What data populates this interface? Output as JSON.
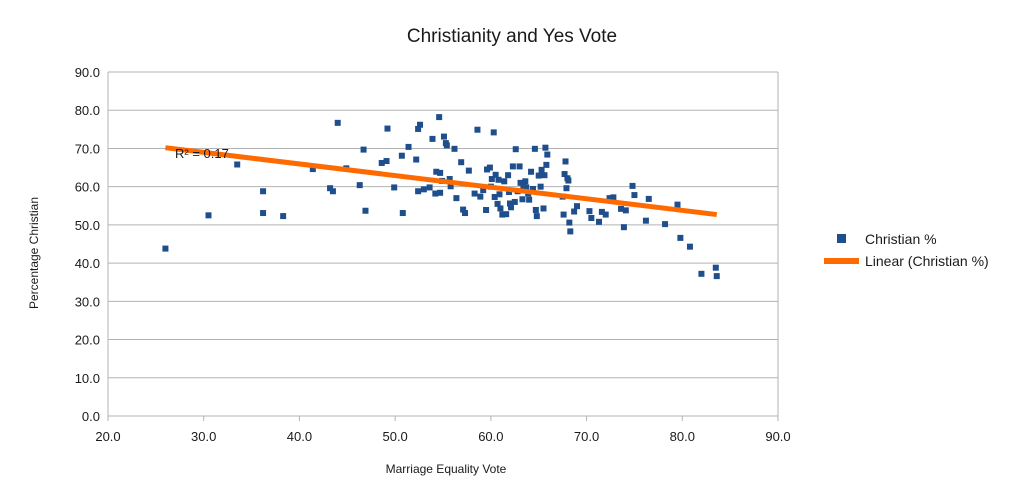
{
  "chart_data": {
    "type": "scatter",
    "title": "Christianity and Yes Vote",
    "xlabel": "Marriage Equality Vote",
    "ylabel": "Percentage Christian",
    "xlim": [
      20,
      90
    ],
    "ylim": [
      0,
      90
    ],
    "x_ticks": [
      "20.0",
      "30.0",
      "40.0",
      "50.0",
      "60.0",
      "70.0",
      "80.0",
      "90.0"
    ],
    "y_ticks": [
      "0.0",
      "10.0",
      "20.0",
      "30.0",
      "40.0",
      "50.0",
      "60.0",
      "70.0",
      "80.0",
      "90.0"
    ],
    "grid": "horizontal",
    "legend_placement": "right",
    "series": [
      {
        "name": "Christian %",
        "marker": "square",
        "color": "#1f4e8c",
        "points": [
          [
            26.0,
            43.8
          ],
          [
            30.5,
            52.5
          ],
          [
            33.5,
            65.8
          ],
          [
            36.2,
            58.8
          ],
          [
            36.2,
            53.1
          ],
          [
            38.3,
            52.3
          ],
          [
            41.4,
            64.6
          ],
          [
            43.2,
            59.6
          ],
          [
            43.5,
            58.8
          ],
          [
            44.0,
            76.7
          ],
          [
            44.9,
            64.8
          ],
          [
            46.3,
            60.4
          ],
          [
            46.7,
            69.7
          ],
          [
            46.9,
            53.7
          ],
          [
            48.6,
            66.2
          ],
          [
            49.1,
            66.7
          ],
          [
            49.2,
            75.2
          ],
          [
            49.9,
            59.8
          ],
          [
            50.7,
            68.1
          ],
          [
            50.8,
            53.1
          ],
          [
            51.4,
            70.4
          ],
          [
            52.2,
            67.1
          ],
          [
            52.4,
            75.1
          ],
          [
            52.6,
            76.2
          ],
          [
            52.4,
            58.8
          ],
          [
            53.0,
            59.3
          ],
          [
            53.6,
            59.8
          ],
          [
            53.9,
            72.5
          ],
          [
            54.3,
            63.9
          ],
          [
            54.2,
            58.2
          ],
          [
            54.6,
            78.2
          ],
          [
            54.7,
            63.6
          ],
          [
            54.7,
            58.4
          ],
          [
            54.9,
            61.5
          ],
          [
            55.1,
            73.1
          ],
          [
            55.3,
            71.4
          ],
          [
            55.4,
            70.8
          ],
          [
            55.7,
            62.0
          ],
          [
            55.8,
            60.1
          ],
          [
            56.2,
            69.9
          ],
          [
            56.4,
            57.0
          ],
          [
            56.9,
            66.4
          ],
          [
            57.1,
            54.0
          ],
          [
            57.3,
            53.1
          ],
          [
            57.7,
            64.2
          ],
          [
            58.3,
            58.2
          ],
          [
            58.6,
            74.9
          ],
          [
            58.9,
            57.4
          ],
          [
            59.2,
            59.1
          ],
          [
            59.5,
            53.9
          ],
          [
            59.6,
            64.5
          ],
          [
            59.9,
            65.0
          ],
          [
            60.0,
            60.0
          ],
          [
            60.1,
            62.0
          ],
          [
            60.3,
            74.2
          ],
          [
            60.4,
            57.3
          ],
          [
            60.5,
            63.1
          ],
          [
            60.7,
            55.5
          ],
          [
            60.8,
            61.8
          ],
          [
            60.9,
            58.0
          ],
          [
            61.0,
            54.3
          ],
          [
            61.2,
            52.7
          ],
          [
            61.4,
            61.4
          ],
          [
            61.6,
            52.8
          ],
          [
            61.8,
            63.0
          ],
          [
            61.9,
            58.6
          ],
          [
            62.0,
            55.6
          ],
          [
            62.1,
            54.6
          ],
          [
            62.3,
            65.3
          ],
          [
            62.5,
            56.0
          ],
          [
            62.6,
            69.8
          ],
          [
            62.8,
            58.8
          ],
          [
            63.0,
            65.3
          ],
          [
            63.1,
            61.0
          ],
          [
            63.3,
            56.7
          ],
          [
            63.4,
            60.2
          ],
          [
            63.6,
            61.4
          ],
          [
            63.7,
            59.8
          ],
          [
            63.9,
            58.2
          ],
          [
            64.0,
            56.6
          ],
          [
            64.2,
            63.9
          ],
          [
            64.4,
            59.4
          ],
          [
            64.6,
            69.9
          ],
          [
            64.7,
            53.9
          ],
          [
            64.8,
            52.3
          ],
          [
            65.0,
            62.9
          ],
          [
            65.2,
            60.0
          ],
          [
            65.3,
            64.4
          ],
          [
            65.5,
            54.3
          ],
          [
            65.6,
            63.0
          ],
          [
            65.7,
            70.2
          ],
          [
            65.8,
            65.7
          ],
          [
            65.9,
            68.4
          ],
          [
            67.5,
            57.4
          ],
          [
            67.6,
            52.7
          ],
          [
            67.7,
            63.3
          ],
          [
            67.8,
            66.6
          ],
          [
            67.9,
            59.6
          ],
          [
            68.0,
            62.2
          ],
          [
            68.1,
            61.6
          ],
          [
            68.2,
            50.6
          ],
          [
            68.3,
            48.3
          ],
          [
            68.7,
            53.5
          ],
          [
            69.0,
            54.9
          ],
          [
            70.3,
            53.6
          ],
          [
            70.5,
            51.8
          ],
          [
            71.3,
            50.8
          ],
          [
            71.6,
            53.4
          ],
          [
            72.0,
            52.7
          ],
          [
            72.4,
            57.0
          ],
          [
            72.8,
            57.2
          ],
          [
            73.6,
            54.2
          ],
          [
            73.9,
            49.4
          ],
          [
            74.1,
            53.8
          ],
          [
            74.8,
            60.2
          ],
          [
            75.0,
            57.8
          ],
          [
            76.2,
            51.1
          ],
          [
            76.5,
            56.8
          ],
          [
            78.2,
            50.2
          ],
          [
            79.5,
            55.3
          ],
          [
            79.8,
            46.6
          ],
          [
            80.8,
            44.3
          ],
          [
            82.0,
            37.2
          ],
          [
            83.5,
            38.8
          ],
          [
            83.6,
            36.6
          ]
        ]
      },
      {
        "name": "Linear (Christian %)",
        "type": "line",
        "color": "#ff6a00",
        "points": [
          [
            26.0,
            70.2
          ],
          [
            83.6,
            52.7
          ]
        ]
      }
    ],
    "annotations": [
      {
        "text": "R² = 0.17",
        "x": 27.0,
        "y": 67.5
      }
    ]
  }
}
